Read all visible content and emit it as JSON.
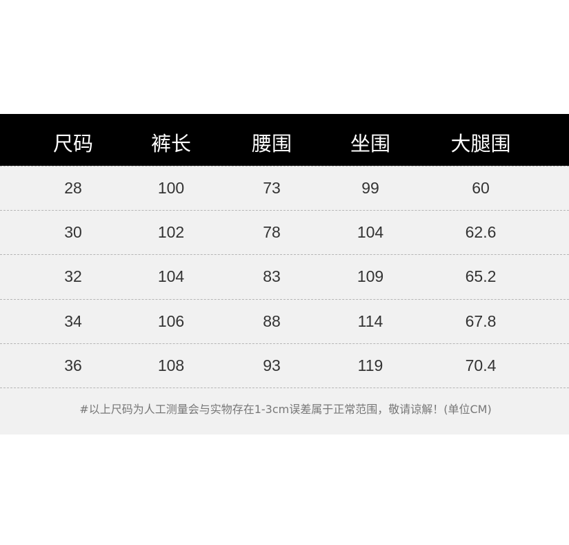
{
  "headers": [
    "尺码",
    "裤长",
    "腰围",
    "坐围",
    "大腿围"
  ],
  "rows": [
    [
      "28",
      "100",
      "73",
      "99",
      "60"
    ],
    [
      "30",
      "102",
      "78",
      "104",
      "62.6"
    ],
    [
      "32",
      "104",
      "83",
      "109",
      "65.2"
    ],
    [
      "34",
      "106",
      "88",
      "114",
      "67.8"
    ],
    [
      "36",
      "108",
      "93",
      "119",
      "70.4"
    ]
  ],
  "note": "#以上尺码为人工测量会与实物存在1-3cm误差属于正常范围，敬请谅解！(单位CM)"
}
